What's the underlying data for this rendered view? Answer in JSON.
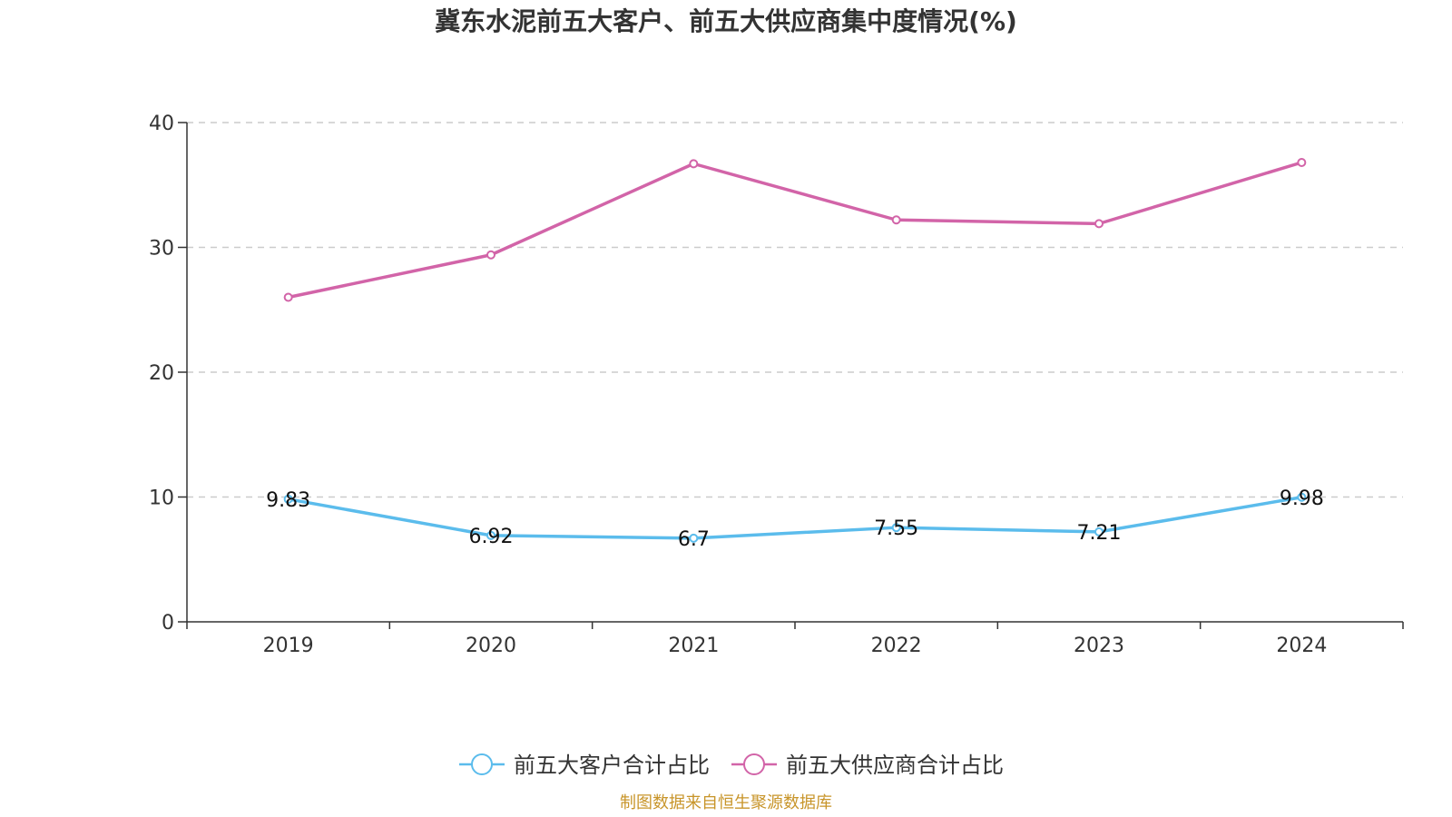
{
  "chart_data": {
    "type": "line",
    "title": "冀东水泥前五大客户、前五大供应商集中度情况(%)",
    "categories": [
      "2019",
      "2020",
      "2021",
      "2022",
      "2023",
      "2024"
    ],
    "ylim": [
      0,
      40
    ],
    "yticks": [
      0,
      10,
      20,
      30,
      40
    ],
    "ytick_labels": [
      "0",
      "10",
      "20",
      "30",
      "40"
    ],
    "grid": true,
    "legend_position": "bottom",
    "series": [
      {
        "name": "前五大客户合计占比",
        "color": "#5bbcec",
        "values": [
          9.83,
          6.92,
          6.7,
          7.55,
          7.21,
          9.98
        ],
        "labels": [
          "9.83",
          "6.92",
          "6.7",
          "7.55",
          "7.21",
          "9.98"
        ],
        "show_labels": true
      },
      {
        "name": "前五大供应商合计占比",
        "color": "#d264a8",
        "values": [
          26.0,
          29.4,
          36.7,
          32.2,
          31.9,
          36.8
        ],
        "show_labels": false
      }
    ]
  },
  "source_text": "制图数据来自恒生聚源数据库",
  "source_color": "#c8952a"
}
